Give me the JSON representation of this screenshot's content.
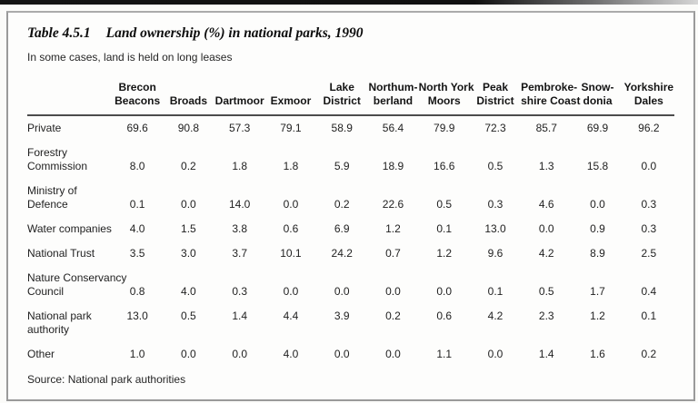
{
  "page": {
    "title_label": "Table 4.5.1",
    "title": "Land ownership (%) in national parks, 1990",
    "subtitle": "In some cases, land is held on long leases",
    "source": "Source: National park authorities"
  },
  "table": {
    "corner_label": "",
    "columns": [
      "Brecon\nBeacons",
      "Broads",
      "Dartmoor",
      "Exmoor",
      "Lake\nDistrict",
      "Northum-\nberland",
      "North York\nMoors",
      "Peak\nDistrict",
      "Pembroke-\nshire Coast",
      "Snow-\ndonia",
      "Yorkshire\nDales"
    ],
    "rows": [
      {
        "label": "Private",
        "values": [
          "69.6",
          "90.8",
          "57.3",
          "79.1",
          "58.9",
          "56.4",
          "79.9",
          "72.3",
          "85.7",
          "69.9",
          "96.2"
        ]
      },
      {
        "label": "Forestry\nCommission",
        "values": [
          "8.0",
          "0.2",
          "1.8",
          "1.8",
          "5.9",
          "18.9",
          "16.6",
          "0.5",
          "1.3",
          "15.8",
          "0.0"
        ]
      },
      {
        "label": "Ministry of\nDefence",
        "values": [
          "0.1",
          "0.0",
          "14.0",
          "0.0",
          "0.2",
          "22.6",
          "0.5",
          "0.3",
          "4.6",
          "0.0",
          "0.3"
        ]
      },
      {
        "label": "Water companies",
        "values": [
          "4.0",
          "1.5",
          "3.8",
          "0.6",
          "6.9",
          "1.2",
          "0.1",
          "13.0",
          "0.0",
          "0.9",
          "0.3"
        ]
      },
      {
        "label": "National Trust",
        "values": [
          "3.5",
          "3.0",
          "3.7",
          "10.1",
          "24.2",
          "0.7",
          "1.2",
          "9.6",
          "4.2",
          "8.9",
          "2.5"
        ]
      },
      {
        "label": "Nature Conservancy\nCouncil",
        "values": [
          "0.8",
          "4.0",
          "0.3",
          "0.0",
          "0.0",
          "0.0",
          "0.0",
          "0.1",
          "0.5",
          "1.7",
          "0.4"
        ]
      },
      {
        "label": "National park\nauthority",
        "values": [
          "13.0",
          "0.5",
          "1.4",
          "4.4",
          "3.9",
          "0.2",
          "0.6",
          "4.2",
          "2.3",
          "1.2",
          "0.1"
        ]
      },
      {
        "label": "Other",
        "values": [
          "1.0",
          "0.0",
          "0.0",
          "4.0",
          "0.0",
          "0.0",
          "1.1",
          "0.0",
          "1.4",
          "1.6",
          "0.2"
        ]
      }
    ]
  }
}
